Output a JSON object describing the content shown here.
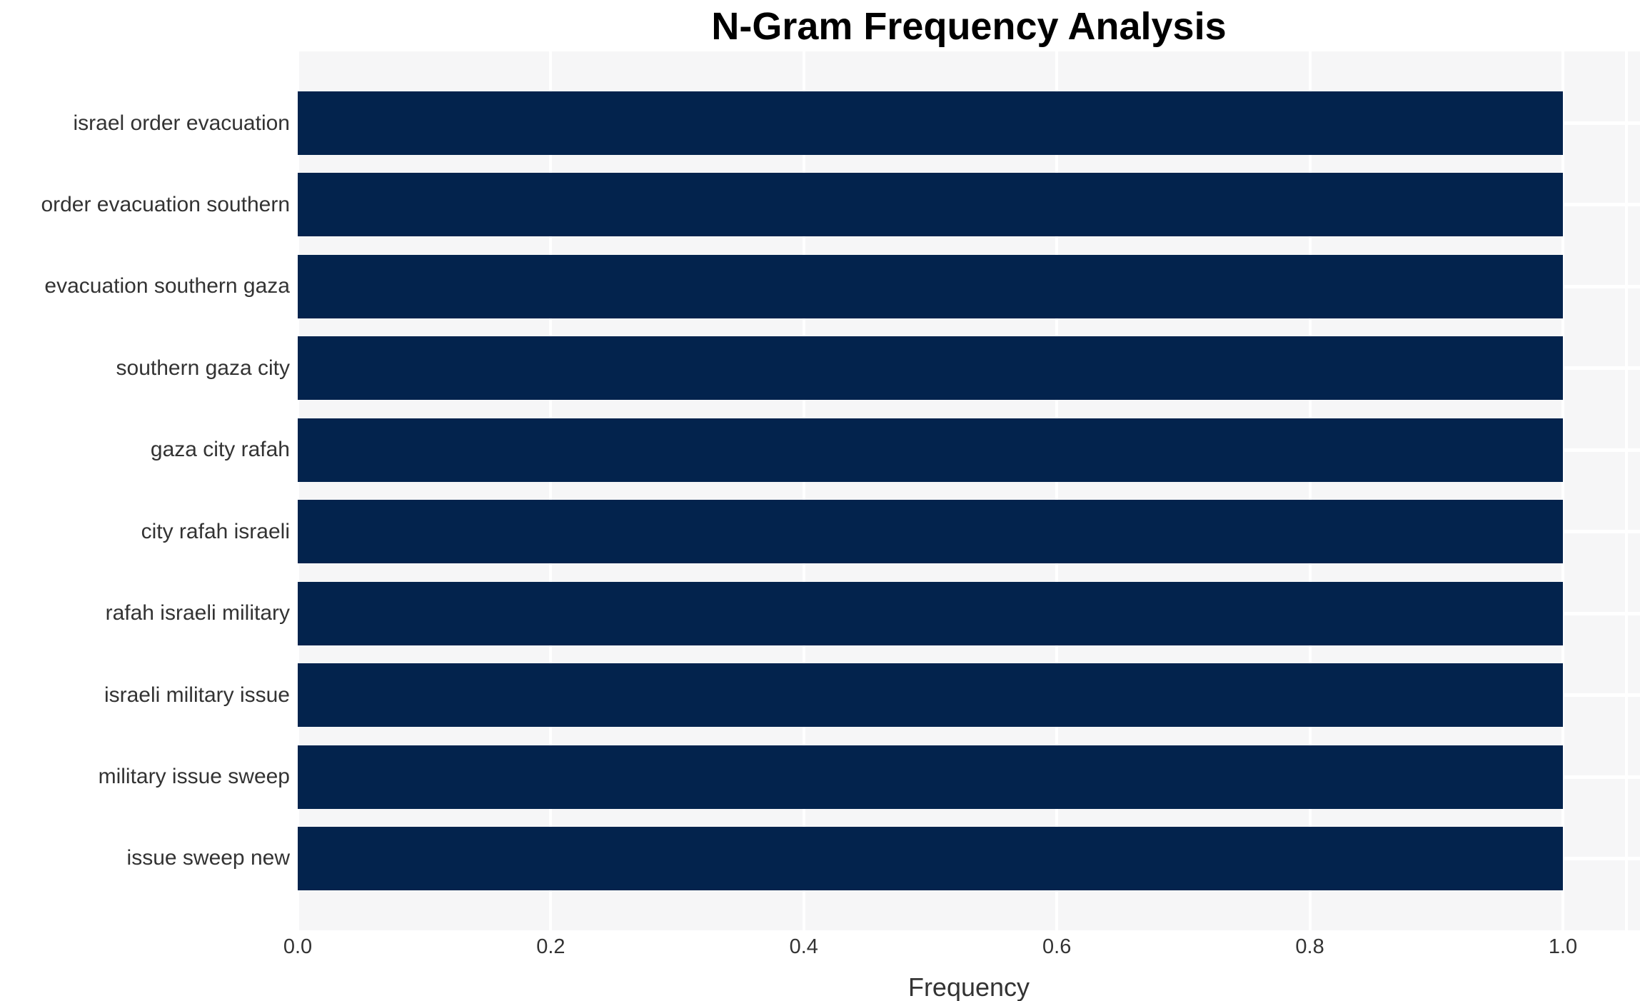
{
  "title": "N-Gram Frequency Analysis",
  "chart_data": {
    "type": "bar",
    "orientation": "horizontal",
    "title": "N-Gram Frequency Analysis",
    "xlabel": "Frequency",
    "ylabel": "",
    "categories": [
      "israel order evacuation",
      "order evacuation southern",
      "evacuation southern gaza",
      "southern gaza city",
      "gaza city rafah",
      "city rafah israeli",
      "rafah israeli military",
      "israeli military issue",
      "military issue sweep",
      "issue sweep new"
    ],
    "values": [
      1.0,
      1.0,
      1.0,
      1.0,
      1.0,
      1.0,
      1.0,
      1.0,
      1.0,
      1.0
    ],
    "xlim": [
      0,
      1.05
    ],
    "xticks": [
      0.0,
      0.2,
      0.4,
      0.6,
      0.8,
      1.0
    ],
    "xtick_labels": [
      "0.0",
      "0.2",
      "0.4",
      "0.6",
      "0.8",
      "1.0"
    ],
    "grid": true,
    "legend": null,
    "colors": {
      "bar": "#03234d",
      "plot_background": "#f6f6f7",
      "gridline": "#ffffff",
      "title_text": "#000000",
      "tick_text": "#333333"
    }
  }
}
